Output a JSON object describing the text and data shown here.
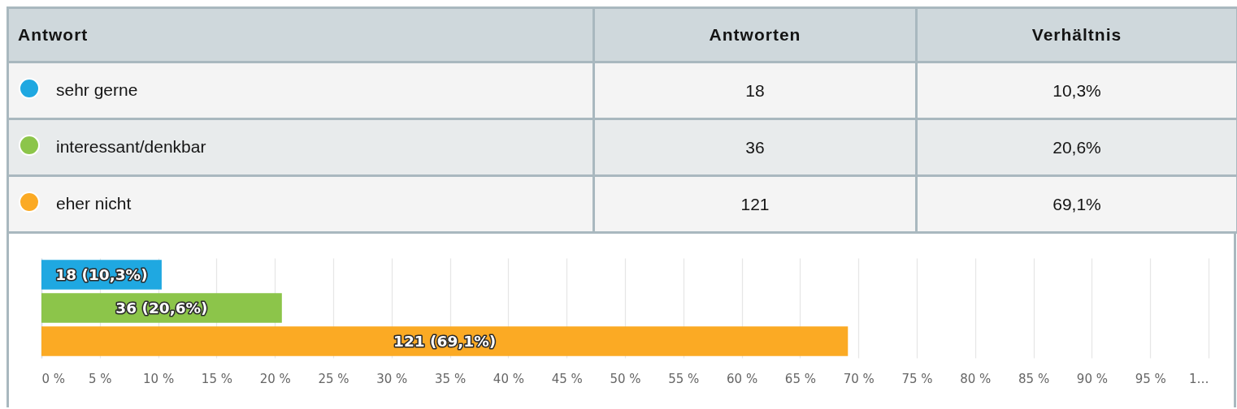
{
  "chart_data": [
    {
      "type": "other",
      "legend_title": "Antwort",
      "categories": [
        "sehr gerne",
        "interessant/denkbar",
        "eher nicht"
      ],
      "colors": [
        "#1fa8e1",
        "#8cc54a",
        "#fbaa24"
      ],
      "data_labels": true,
      "series": [
        {
          "name": "Antworten",
          "colors": [
            "#f4f4f4",
            "#e8ebec",
            "#f4f4f4"
          ],
          "values": [
            18,
            36,
            121
          ]
        },
        {
          "name": "Verhältnis",
          "colors": [
            "#f4f4f4",
            "#e8ebec",
            "#f4f4f4"
          ],
          "values": [
            10.3,
            20.6,
            69.1
          ],
          "value_labels": [
            "10,3%",
            "20,6%",
            "69,1%"
          ]
        }
      ]
    },
    {
      "type": "bar",
      "orientation": "horizontal",
      "categories": [
        null,
        null,
        null
      ],
      "colors": [
        "#1fa8e1",
        "#8cc54a",
        "#fbaa24"
      ],
      "values": [
        10.3,
        20.6,
        69.1
      ],
      "value_labels": [
        "18 (10,3%)",
        "36 (20,6%)",
        "121 (69,1%)"
      ],
      "xlim": [
        0,
        100
      ],
      "xticks": [
        {
          "value": 0,
          "label": "0 %"
        },
        {
          "value": 5,
          "label": "5 %"
        },
        {
          "value": 10,
          "label": "10 %"
        },
        {
          "value": 15,
          "label": "15 %"
        },
        {
          "value": 20,
          "label": "20 %"
        },
        {
          "value": 25,
          "label": "25 %"
        },
        {
          "value": 30,
          "label": "30 %"
        },
        {
          "value": 35,
          "label": "35 %"
        },
        {
          "value": 40,
          "label": "40 %"
        },
        {
          "value": 45,
          "label": "45 %"
        },
        {
          "value": 50,
          "label": "50 %"
        },
        {
          "value": 55,
          "label": "55 %"
        },
        {
          "value": 60,
          "label": "60 %"
        },
        {
          "value": 65,
          "label": "65 %"
        },
        {
          "value": 70,
          "label": "70 %"
        },
        {
          "value": 75,
          "label": "75 %"
        },
        {
          "value": 80,
          "label": "80 %"
        },
        {
          "value": 85,
          "label": "85 %"
        },
        {
          "value": 90,
          "label": "90 %"
        },
        {
          "value": 95,
          "label": "95 %"
        },
        {
          "value": 100,
          "label": "1…"
        }
      ],
      "grid": "x"
    }
  ]
}
